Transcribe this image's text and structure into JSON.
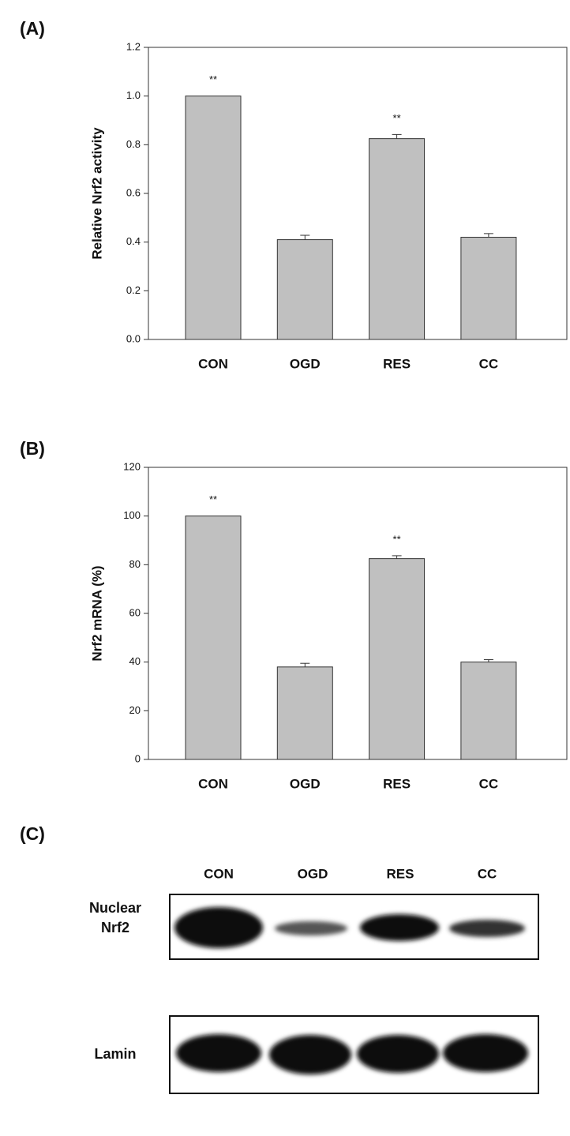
{
  "chart_data": [
    {
      "type": "bar",
      "label": "(A)",
      "y_label": "Relative Nrf2 activity",
      "categories": [
        "CON",
        "OGD",
        "RES",
        "CC"
      ],
      "values": [
        1.0,
        0.41,
        0.825,
        0.42
      ],
      "errors": [
        null,
        0.018,
        0.017,
        0.015
      ],
      "annotations": [
        "**",
        null,
        "**",
        null
      ],
      "color": "#c0c0c0",
      "ylim": [
        0,
        1.2
      ],
      "yticks": [
        {
          "value": 0,
          "label": "0.0"
        },
        0.2,
        0.4,
        0.6,
        0.8,
        {
          "value": 1,
          "label": "1.0"
        },
        1.2
      ]
    },
    {
      "type": "bar",
      "label": "(B)",
      "y_label": "Nrf2 mRNA (%)",
      "categories": [
        "CON",
        "OGD",
        "RES",
        "CC"
      ],
      "values": [
        100,
        38,
        82.5,
        40
      ],
      "errors": [
        null,
        1.5,
        1.2,
        1.0
      ],
      "annotations": [
        "**",
        null,
        "**",
        null
      ],
      "color": "#c0c0c0",
      "ylim": [
        0,
        120
      ],
      "yticks": [
        0,
        20,
        40,
        60,
        80,
        100,
        120
      ]
    }
  ],
  "blot": {
    "label": "(C)",
    "lanes": [
      "CON",
      "OGD",
      "RES",
      "CC"
    ],
    "rows": [
      "Nuclear Nrf2",
      "Lamin"
    ]
  }
}
